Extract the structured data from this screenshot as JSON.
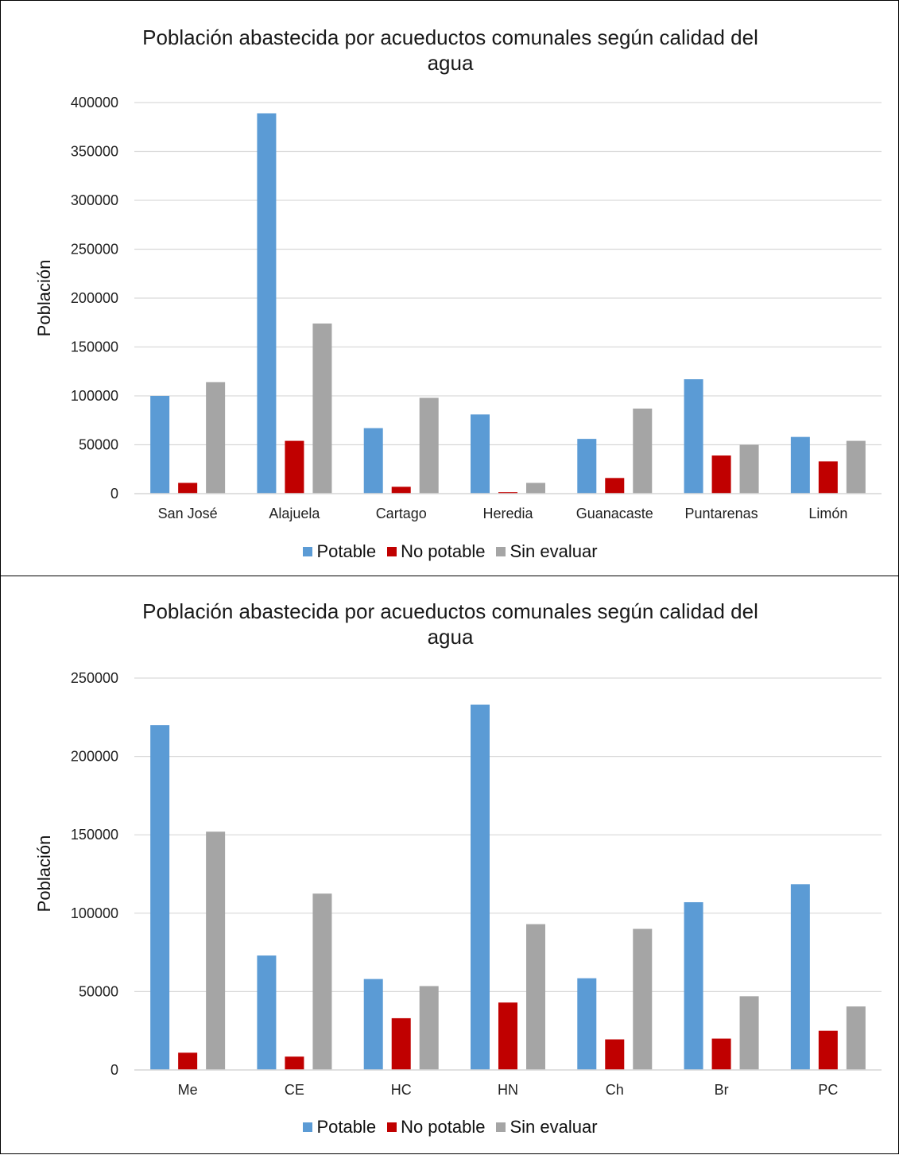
{
  "chart_data": [
    {
      "type": "bar",
      "title_lines": [
        "Población abastecida por acueductos comunales según calidad del",
        "agua"
      ],
      "xlabel": "",
      "ylabel": "Población",
      "ylim": [
        0,
        400000
      ],
      "yticks": [
        0,
        50000,
        100000,
        150000,
        200000,
        250000,
        300000,
        350000,
        400000
      ],
      "grid": true,
      "legend_position": "bottom",
      "categories": [
        "San José",
        "Alajuela",
        "Cartago",
        "Heredia",
        "Guanacaste",
        "Puntarenas",
        "Limón"
      ],
      "series": [
        {
          "name": "Potable",
          "color": "#5b9bd5",
          "values": [
            100000,
            389000,
            67000,
            81000,
            56000,
            117000,
            58000
          ]
        },
        {
          "name": "No potable",
          "color": "#c00000",
          "values": [
            11000,
            54000,
            7000,
            1500,
            16000,
            39000,
            33000
          ]
        },
        {
          "name": "Sin evaluar",
          "color": "#a5a5a5",
          "values": [
            114000,
            174000,
            98000,
            11000,
            87000,
            50000,
            54000
          ]
        }
      ]
    },
    {
      "type": "bar",
      "title_lines": [
        "Población abastecida por acueductos comunales según calidad del",
        "agua"
      ],
      "xlabel": "",
      "ylabel": "Población",
      "ylim": [
        0,
        250000
      ],
      "yticks": [
        0,
        50000,
        100000,
        150000,
        200000,
        250000
      ],
      "grid": true,
      "legend_position": "bottom",
      "categories": [
        "Me",
        "CE",
        "HC",
        "HN",
        "Ch",
        "Br",
        "PC"
      ],
      "series": [
        {
          "name": "Potable",
          "color": "#5b9bd5",
          "values": [
            220000,
            73000,
            58000,
            233000,
            58500,
            107000,
            118500
          ]
        },
        {
          "name": "No potable",
          "color": "#c00000",
          "values": [
            11000,
            8500,
            33000,
            43000,
            19500,
            20000,
            25000
          ]
        },
        {
          "name": "Sin evaluar",
          "color": "#a5a5a5",
          "values": [
            152000,
            112500,
            53500,
            93000,
            90000,
            47000,
            40500
          ]
        }
      ]
    }
  ]
}
